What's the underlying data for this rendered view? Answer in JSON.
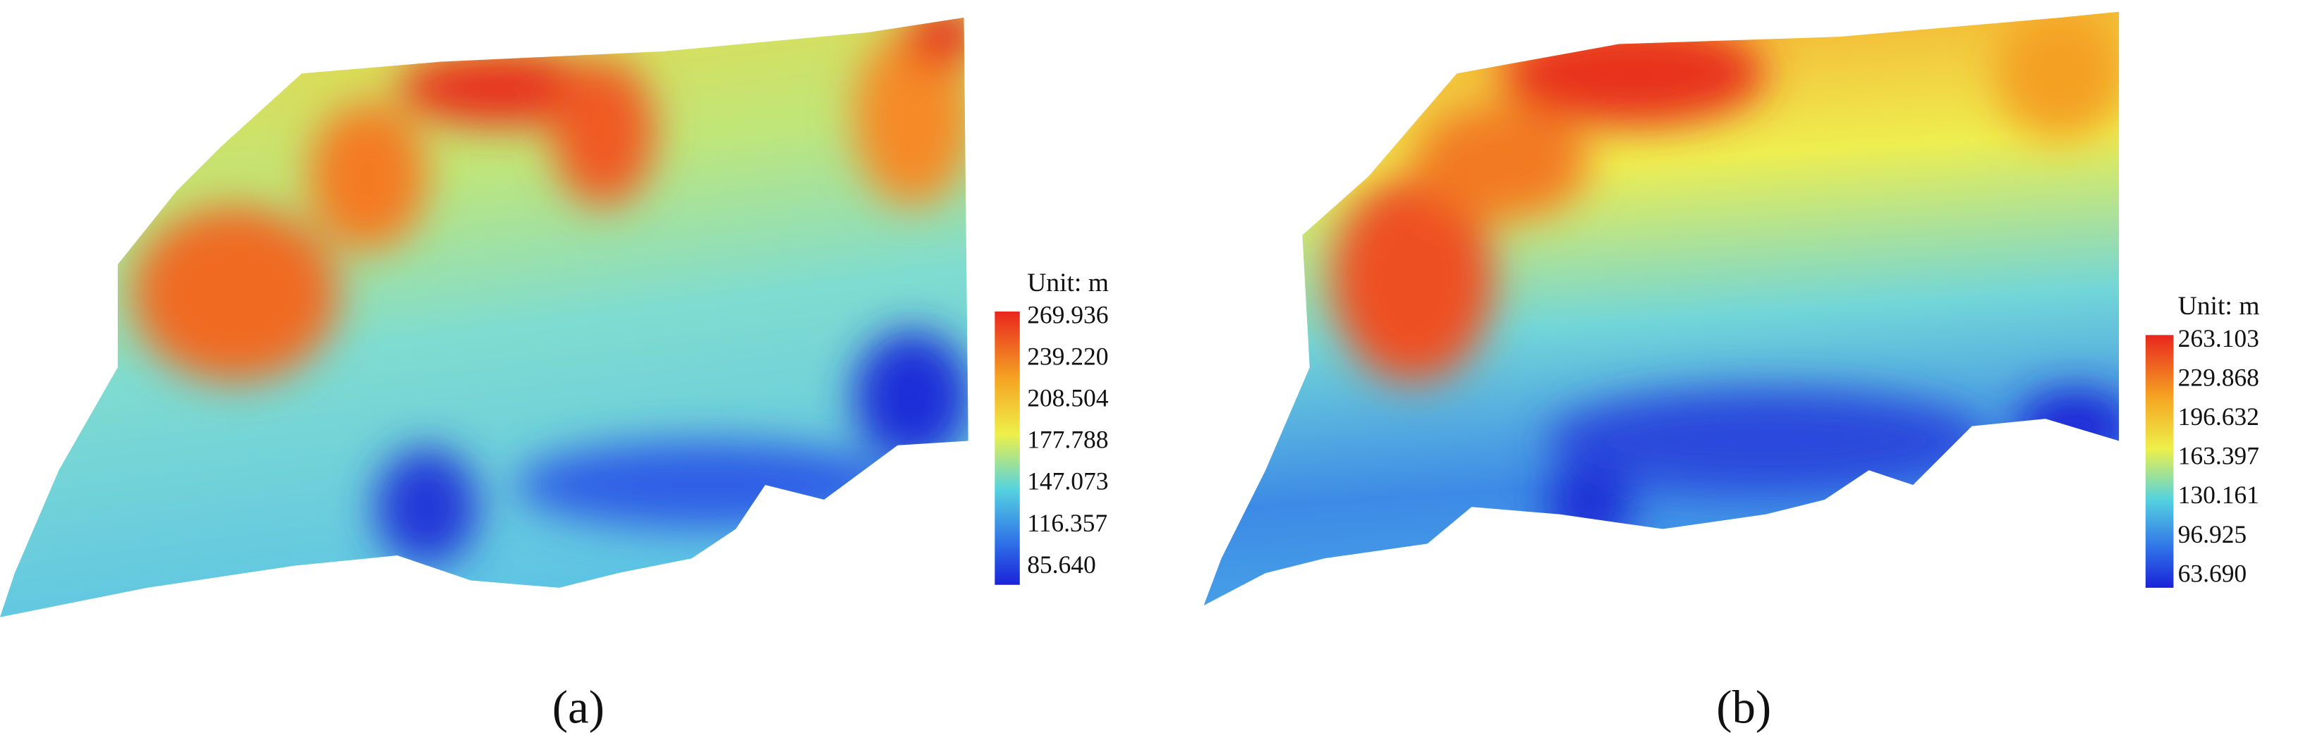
{
  "panels": [
    {
      "label": "(a)",
      "legend": {
        "title": "Unit: m",
        "ticks": [
          "269.936",
          "239.220",
          "208.504",
          "177.788",
          "147.073",
          "116.357",
          "85.640"
        ]
      }
    },
    {
      "label": "(b)",
      "legend": {
        "title": "Unit: m",
        "ticks": [
          "263.103",
          "229.868",
          "196.632",
          "163.397",
          "130.161",
          "96.925",
          "63.690"
        ]
      }
    }
  ]
}
